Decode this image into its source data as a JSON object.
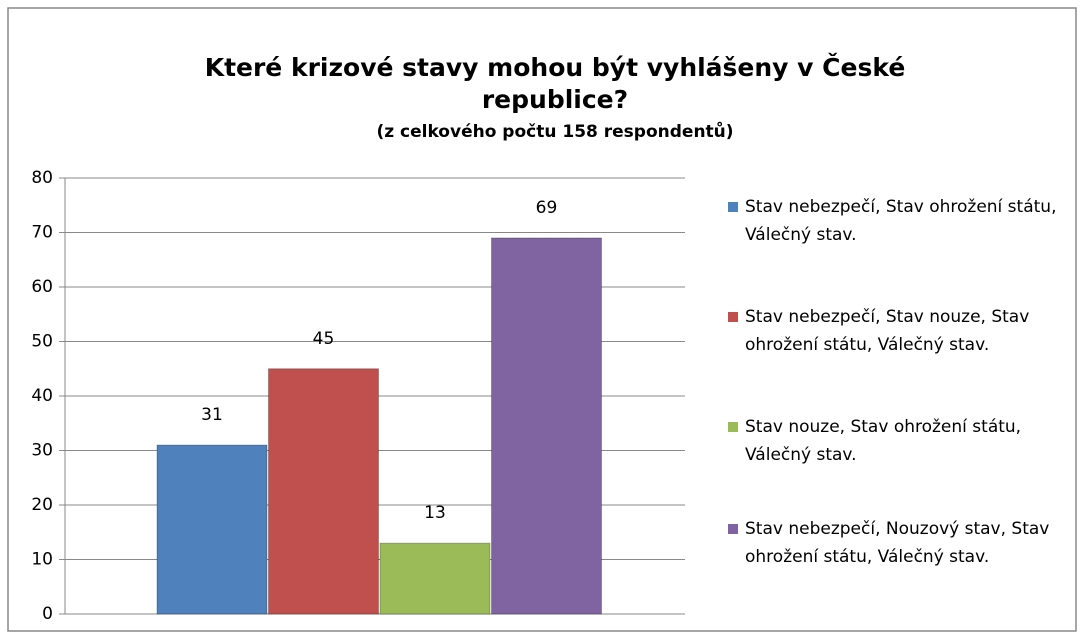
{
  "chart_data": {
    "type": "bar",
    "title": "Které krizové stavy mohou být vyhlášeny v České republice?",
    "subtitle": "(z celkového počtu 158 respondentů)",
    "series": [
      {
        "name": "Stav nebezpečí, Stav ohrožení státu, Válečný stav.",
        "color": "#4f81bd",
        "values": [
          31
        ]
      },
      {
        "name": "Stav nebezpečí, Stav nouze, Stav ohrožení státu, Válečný stav.",
        "color": "#c0504d",
        "values": [
          45
        ]
      },
      {
        "name": "Stav nouze, Stav ohrožení státu, Válečný stav.",
        "color": "#9bbb59",
        "values": [
          13
        ]
      },
      {
        "name": "Stav nebezpečí, Nouzový stav, Stav ohrožení státu, Válečný stav.",
        "color": "#8064a2",
        "values": [
          69
        ]
      }
    ],
    "ylim": [
      0,
      80
    ],
    "yticks": [
      0,
      10,
      20,
      30,
      40,
      50,
      60,
      70,
      80
    ],
    "grid": true,
    "legend": "right"
  }
}
